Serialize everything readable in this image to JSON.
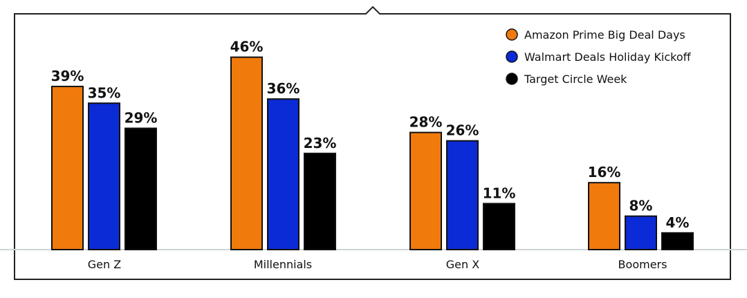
{
  "chart_data": {
    "type": "bar",
    "title": "",
    "xlabel": "",
    "ylabel": "",
    "ylim": [
      0,
      50
    ],
    "grid": false,
    "legend_position": "top-right",
    "categories": [
      "Gen Z",
      "Millennials",
      "Gen X",
      "Boomers"
    ],
    "series": [
      {
        "name": "Amazon Prime Big Deal Days",
        "color": "#F07A0C",
        "values": [
          39,
          46,
          28,
          16
        ],
        "labels": [
          "39%",
          "46%",
          "28%",
          "16%"
        ]
      },
      {
        "name": "Walmart Deals Holiday Kickoff",
        "color": "#0B2BD6",
        "values": [
          35,
          36,
          26,
          8
        ],
        "labels": [
          "35%",
          "36%",
          "26%",
          "8%"
        ]
      },
      {
        "name": "Target Circle Week",
        "color": "#000000",
        "values": [
          29,
          23,
          11,
          4
        ],
        "labels": [
          "29%",
          "23%",
          "11%",
          "4%"
        ]
      }
    ]
  }
}
